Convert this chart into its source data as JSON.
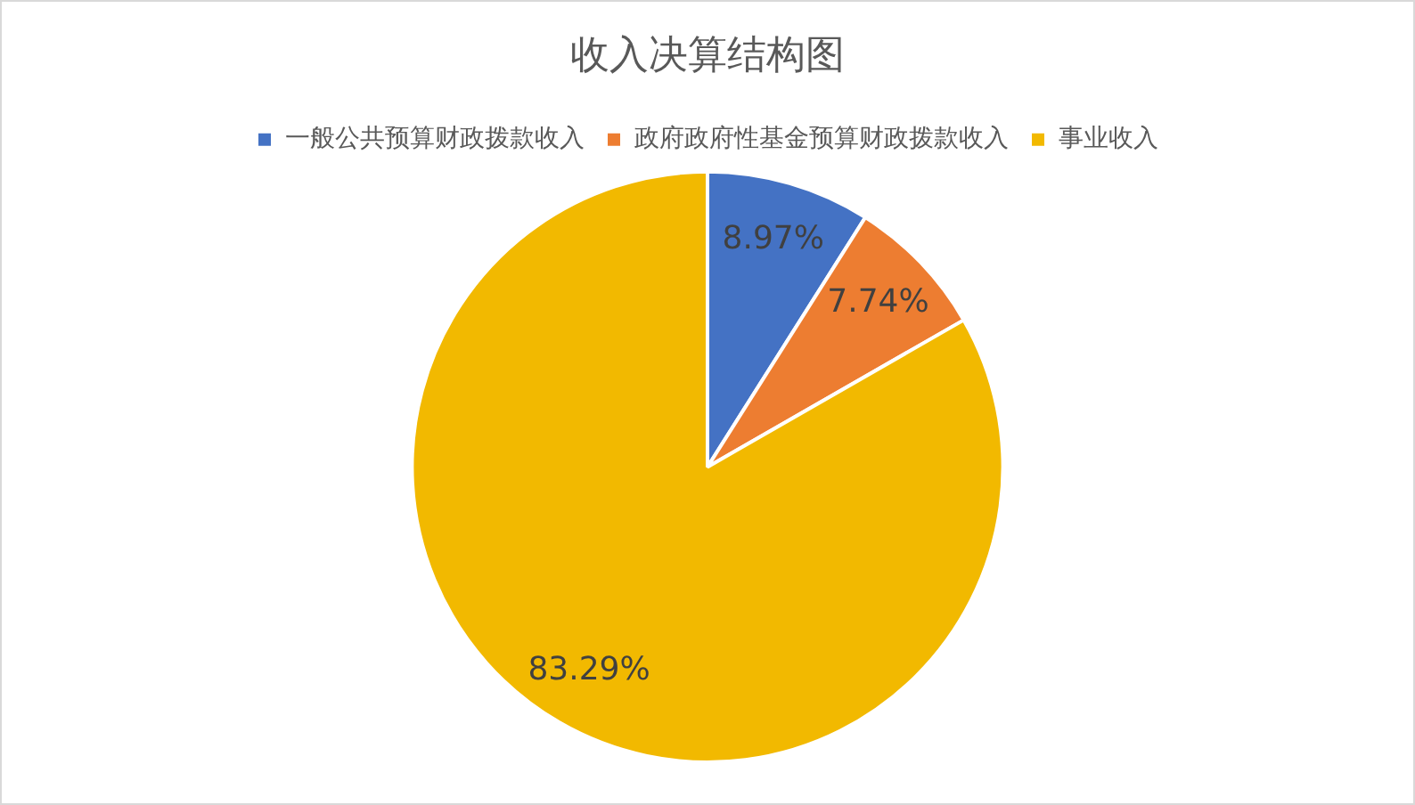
{
  "chart_data": {
    "type": "pie",
    "title": "收入决算结构图",
    "categories": [
      "一般公共预算财政拨款收入",
      "政府政府性基金预算财政拨款收入",
      "事业收入"
    ],
    "values": [
      8.97,
      7.74,
      83.29
    ],
    "colors": [
      "#4472c4",
      "#ed7d31",
      "#f2b900"
    ],
    "value_labels": [
      "8.97%",
      "7.74%",
      "83.29%"
    ],
    "legend": "top"
  }
}
